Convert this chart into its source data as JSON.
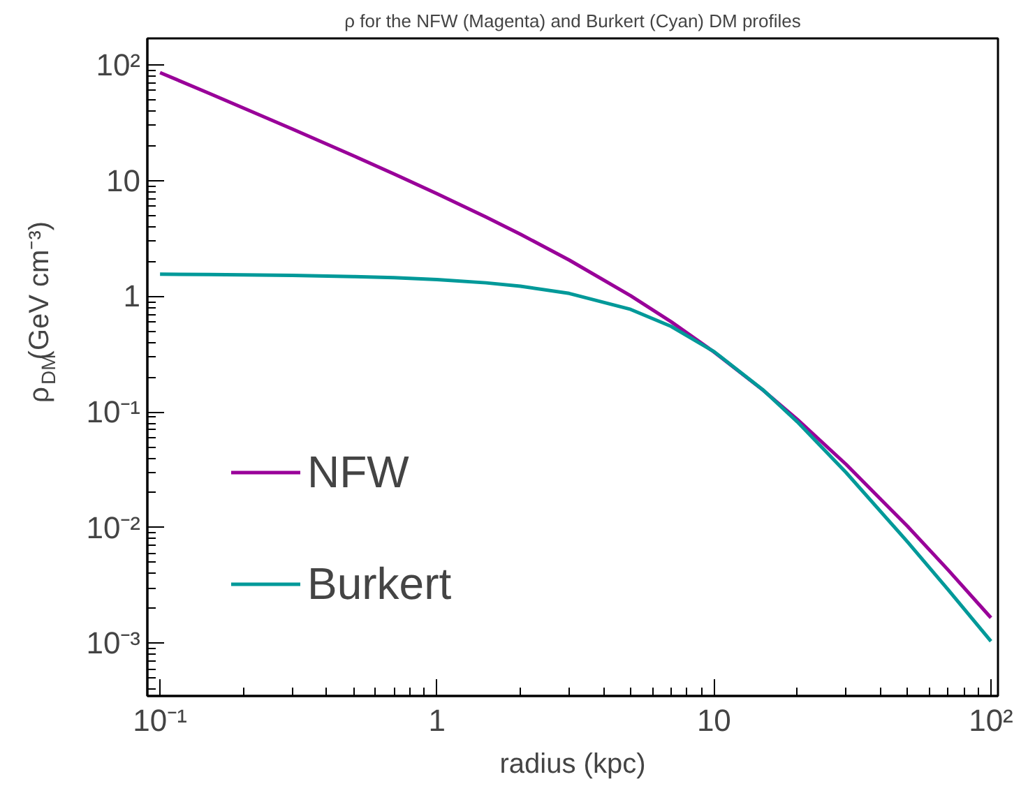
{
  "chart_data": {
    "type": "line",
    "title": "ρ for the NFW (Magenta) and Burkert (Cyan) DM profiles",
    "xlabel": "radius (kpc)",
    "ylabel": "ρ$_{DM}$(GeV cm⁻³)",
    "x": [
      0.1,
      0.15,
      0.2,
      0.3,
      0.5,
      0.7,
      1,
      1.5,
      2,
      3,
      5,
      7,
      10,
      15,
      20,
      30,
      50,
      70,
      100
    ],
    "series": [
      {
        "name": "NFW",
        "color": "#990099",
        "values": [
          86.1,
          57.06,
          42.53,
          28.01,
          16.4,
          11.43,
          7.72,
          4.86,
          3.445,
          2.061,
          1.012,
          0.603,
          0.33,
          0.155,
          0.0861,
          0.0352,
          0.01025,
          0.00431,
          0.00166
        ]
      },
      {
        "name": "Burkert",
        "color": "#009999",
        "values": [
          1.553,
          1.544,
          1.535,
          1.518,
          1.483,
          1.448,
          1.396,
          1.309,
          1.224,
          1.06,
          0.771,
          0.55,
          0.333,
          0.156,
          0.0821,
          0.0299,
          0.00752,
          0.00291,
          0.00104
        ]
      }
    ],
    "log": "xy",
    "xlim": [
      0.09,
      106
    ],
    "ylim": [
      0.00035,
      170
    ],
    "xticks": [
      {
        "value": 0.1,
        "label": "10⁻¹"
      },
      1,
      10,
      {
        "value": 100,
        "label": "10²"
      }
    ],
    "yticks": [
      {
        "value": 0.001,
        "label": "10⁻³"
      },
      {
        "value": 0.01,
        "label": "10⁻²"
      },
      {
        "value": 0.1,
        "label": "10⁻¹"
      },
      1,
      10,
      {
        "value": 100,
        "label": "10²"
      }
    ],
    "grid": false,
    "legend": "bottom left",
    "marker": "none",
    "line_style": "solid"
  }
}
